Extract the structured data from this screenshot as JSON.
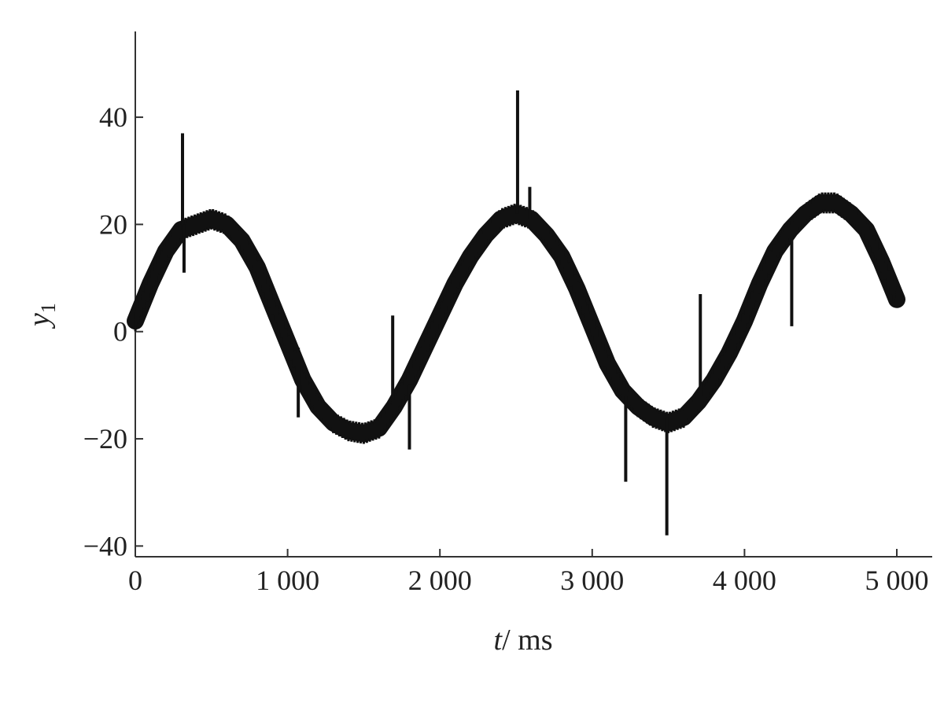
{
  "chart_data": {
    "type": "line",
    "title": "",
    "xlabel_var": "t",
    "xlabel_unit": "/ ms",
    "ylabel_var": "y",
    "ylabel_sub": "1",
    "xlim": [
      0,
      5000
    ],
    "ylim": [
      -42,
      56
    ],
    "x_ticks": [
      0,
      1000,
      2000,
      3000,
      4000,
      5000
    ],
    "x_tick_labels": [
      "0",
      "1 000",
      "2 000",
      "3 000",
      "4 000",
      "5 000"
    ],
    "y_ticks": [
      -40,
      -20,
      0,
      20,
      40
    ],
    "y_tick_labels": [
      "−40",
      "−20",
      "0",
      "20",
      "40"
    ],
    "grid": false,
    "series": [
      {
        "name": "",
        "color": "#111111",
        "points": [
          [
            0,
            2
          ],
          [
            100,
            9
          ],
          [
            200,
            15
          ],
          [
            300,
            19
          ],
          [
            400,
            20
          ],
          [
            500,
            21
          ],
          [
            600,
            20
          ],
          [
            700,
            17
          ],
          [
            800,
            12
          ],
          [
            900,
            5
          ],
          [
            1000,
            -2
          ],
          [
            1100,
            -9
          ],
          [
            1200,
            -14
          ],
          [
            1300,
            -17
          ],
          [
            1400,
            -18.5
          ],
          [
            1500,
            -19
          ],
          [
            1600,
            -18
          ],
          [
            1700,
            -14
          ],
          [
            1800,
            -9
          ],
          [
            1900,
            -3
          ],
          [
            2000,
            3
          ],
          [
            2100,
            9
          ],
          [
            2200,
            14
          ],
          [
            2300,
            18
          ],
          [
            2400,
            21
          ],
          [
            2500,
            22
          ],
          [
            2600,
            21
          ],
          [
            2700,
            18
          ],
          [
            2800,
            14
          ],
          [
            2900,
            8
          ],
          [
            3000,
            1
          ],
          [
            3100,
            -6
          ],
          [
            3200,
            -11
          ],
          [
            3300,
            -14
          ],
          [
            3400,
            -16
          ],
          [
            3500,
            -17
          ],
          [
            3600,
            -16
          ],
          [
            3700,
            -13
          ],
          [
            3800,
            -9
          ],
          [
            3900,
            -4
          ],
          [
            4000,
            2
          ],
          [
            4100,
            9
          ],
          [
            4200,
            15
          ],
          [
            4300,
            19
          ],
          [
            4400,
            22
          ],
          [
            4500,
            24
          ],
          [
            4600,
            24
          ],
          [
            4700,
            22
          ],
          [
            4800,
            19
          ],
          [
            4900,
            13
          ],
          [
            5000,
            6
          ]
        ],
        "spikes": [
          [
            310,
            19,
            37
          ],
          [
            320,
            20,
            11
          ],
          [
            1070,
            -3,
            -16
          ],
          [
            1690,
            -12,
            3
          ],
          [
            1800,
            -10,
            -22
          ],
          [
            2510,
            22,
            45
          ],
          [
            2590,
            21,
            27
          ],
          [
            3220,
            -12,
            -28
          ],
          [
            3490,
            -16,
            -38
          ],
          [
            3710,
            -12,
            7
          ],
          [
            4310,
            18,
            1
          ]
        ]
      }
    ]
  }
}
